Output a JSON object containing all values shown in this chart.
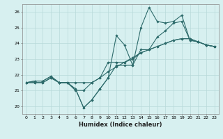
{
  "xlabel": "Humidex (Indice chaleur)",
  "background_color": "#d7f0f0",
  "line_color": "#2d6b6b",
  "grid_color": "#b8dada",
  "xlim": [
    -0.5,
    23.5
  ],
  "ylim": [
    19.5,
    26.5
  ],
  "yticks": [
    20,
    21,
    22,
    23,
    24,
    25,
    26
  ],
  "xticks": [
    0,
    1,
    2,
    3,
    4,
    5,
    6,
    7,
    8,
    9,
    10,
    11,
    12,
    13,
    14,
    15,
    16,
    17,
    18,
    19,
    20,
    21,
    22,
    23
  ],
  "series": [
    [
      21.5,
      21.6,
      21.6,
      21.9,
      21.5,
      21.5,
      21.1,
      19.9,
      20.4,
      21.1,
      21.8,
      22.6,
      22.6,
      22.6,
      23.6,
      23.6,
      24.4,
      24.8,
      25.3,
      25.4,
      24.2,
      24.1,
      23.9,
      23.8
    ],
    [
      21.5,
      21.6,
      21.6,
      21.9,
      21.5,
      21.5,
      21.1,
      19.9,
      20.4,
      21.1,
      21.8,
      24.5,
      23.9,
      22.6,
      25.0,
      26.3,
      25.4,
      25.3,
      25.4,
      25.8,
      24.2,
      24.1,
      23.9,
      23.8
    ],
    [
      21.5,
      21.5,
      21.5,
      21.8,
      21.5,
      21.5,
      21.5,
      21.5,
      21.5,
      21.8,
      22.2,
      22.5,
      22.8,
      23.1,
      23.4,
      23.6,
      23.8,
      24.0,
      24.2,
      24.3,
      24.3,
      24.1,
      23.9,
      23.8
    ],
    [
      21.5,
      21.5,
      21.5,
      21.8,
      21.5,
      21.5,
      21.0,
      21.0,
      21.5,
      21.8,
      22.8,
      22.8,
      22.8,
      23.0,
      23.4,
      23.6,
      23.8,
      24.0,
      24.2,
      24.3,
      24.3,
      24.1,
      23.9,
      23.8
    ]
  ]
}
